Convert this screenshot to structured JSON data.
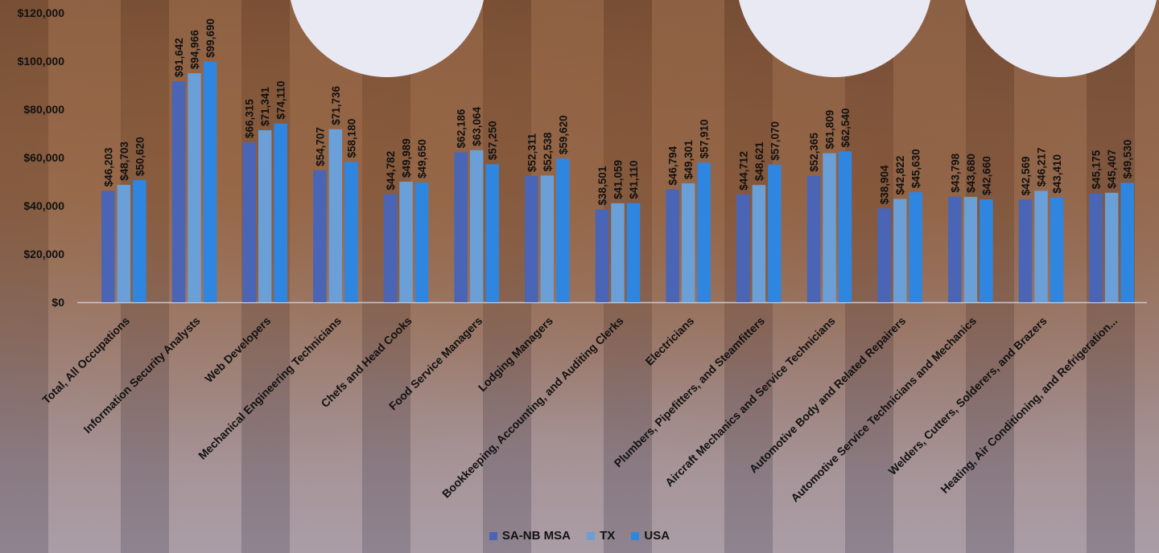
{
  "chart_data": {
    "type": "bar",
    "title": "",
    "xlabel": "",
    "ylabel": "",
    "ylim": [
      0,
      120000
    ],
    "yticks": [
      "$0",
      "$20,000",
      "$40,000",
      "$60,000",
      "$80,000",
      "$100,000",
      "$120,000"
    ],
    "grid": false,
    "legend_position": "bottom",
    "categories": [
      "Total, All Occupations",
      "Information Security Analysts",
      "Web Developers",
      "Mechanical Engineering Technicians",
      "Chefs and Head Cooks",
      "Food Service Managers",
      "Lodging Managers",
      "Bookkeeping, Accounting, and Auditing Clerks",
      "Electricians",
      "Plumbers, Pipefitters, and Steamfitters",
      "Aircraft Mechanics and Service Technicians",
      "Automotive Body and Related Repairers",
      "Automotive Service Technicians and Mechanics",
      "Welders, Cutters, Solderers, and Brazers",
      "Heating, Air Conditioning, and Refrigeration..."
    ],
    "series": [
      {
        "name": "SA-NB MSA",
        "color": "#4a65b5",
        "values": [
          46203,
          91642,
          66315,
          54707,
          44782,
          62186,
          52311,
          38501,
          46794,
          44712,
          52365,
          38904,
          43798,
          42569,
          45175
        ],
        "labels": [
          "$46,203",
          "$91,642",
          "$66,315",
          "$54,707",
          "$44,782",
          "$62,186",
          "$52,311",
          "$38,501",
          "$46,794",
          "$44,712",
          "$52,365",
          "$38,904",
          "$43,798",
          "$42,569",
          "$45,175"
        ]
      },
      {
        "name": "TX",
        "color": "#6b9fd8",
        "values": [
          48703,
          94966,
          71341,
          71736,
          49989,
          63064,
          52538,
          41059,
          49301,
          48621,
          61809,
          42822,
          43680,
          46217,
          45407
        ],
        "labels": [
          "$48,703",
          "$94,966",
          "$71,341",
          "$71,736",
          "$49,989",
          "$63,064",
          "$52,538",
          "$41,059",
          "$49,301",
          "$48,621",
          "$61,809",
          "$42,822",
          "$43,680",
          "$46,217",
          "$45,407"
        ]
      },
      {
        "name": "USA",
        "color": "#2f86e0",
        "values": [
          50620,
          99690,
          74110,
          58180,
          49650,
          57250,
          59620,
          41110,
          57910,
          57070,
          62540,
          45630,
          42660,
          43410,
          49530
        ],
        "labels": [
          "$50,620",
          "$99,690",
          "$74,110",
          "$58,180",
          "$49,650",
          "$57,250",
          "$59,620",
          "$41,110",
          "$57,910",
          "$57,070",
          "$62,540",
          "$45,630",
          "$42,660",
          "$43,410",
          "$49,530"
        ]
      }
    ]
  }
}
